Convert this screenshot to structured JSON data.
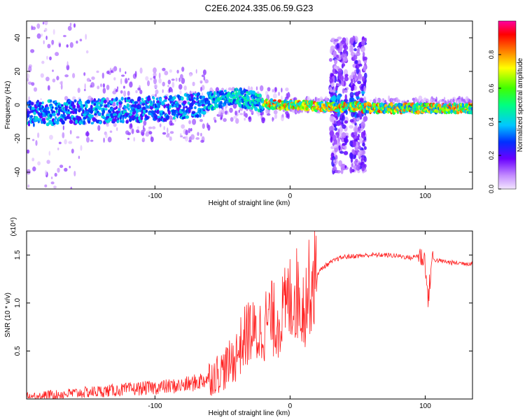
{
  "figure_title": "C2E6.2024.335.06.59.G23",
  "colors": {
    "snr_line": "#ff2020",
    "spectrum_low": "#e6d6ff",
    "spectrum_mid": "#6a00ff",
    "spectrum_high": "#ff0000"
  },
  "chart_data": [
    {
      "type": "heatmap",
      "title": "C2E6.2024.335.06.59.G23",
      "xlabel": "Height of straight line (km)",
      "ylabel": "Frequency (Hz)",
      "xlim": [
        -195,
        135
      ],
      "ylim": [
        -50,
        50
      ],
      "xticks": [
        -100,
        0,
        100
      ],
      "xtick_labels": [
        "-100",
        "0",
        "100"
      ],
      "yticks": [
        -40,
        -20,
        0,
        20,
        40
      ],
      "ytick_labels": [
        "-40",
        "-20",
        "0",
        "20",
        "40"
      ],
      "colorbar": {
        "label": "Normalized spectral amplitude",
        "range": [
          0,
          1
        ],
        "ticks": [
          0.0,
          0.2,
          0.4,
          0.6,
          0.8
        ],
        "tick_labels": [
          "0.0",
          "0.2",
          "0.4",
          "0.6",
          "0.8"
        ]
      },
      "ridge": {
        "x": [
          -195,
          -150,
          -120,
          -90,
          -70,
          -55,
          -45,
          -40,
          -35,
          -30,
          -25,
          -20,
          -10,
          0,
          10,
          20,
          30,
          40,
          50,
          60,
          80,
          100,
          120,
          135
        ],
        "frequency": [
          -5,
          -4,
          -3,
          -2,
          0,
          3,
          5,
          6,
          4,
          3,
          2,
          1,
          0,
          0,
          0,
          -1,
          -1,
          -1,
          -1,
          -2,
          -2,
          -2,
          -2,
          -2
        ]
      },
      "noise_bursts_x": [
        [
          30,
          42
        ],
        [
          45,
          56
        ]
      ]
    },
    {
      "type": "line",
      "title": "",
      "xlabel": "Height of straight line (km)",
      "ylabel": "SNR (10 * v/v)",
      "y_multiplier": "(x10⁴)",
      "xlim": [
        -195,
        135
      ],
      "ylim": [
        0,
        1.75
      ],
      "xticks": [
        -100,
        0,
        100
      ],
      "xtick_labels": [
        "-100",
        "0",
        "100"
      ],
      "yticks": [
        0.5,
        1.0,
        1.5
      ],
      "ytick_labels": [
        "0.5",
        "1.0",
        "1.5"
      ],
      "series": [
        {
          "name": "SNR",
          "x": [
            -195,
            -180,
            -160,
            -140,
            -120,
            -100,
            -80,
            -70,
            -60,
            -50,
            -45,
            -40,
            -35,
            -30,
            -25,
            -20,
            -15,
            -10,
            -5,
            0,
            5,
            10,
            15,
            20,
            25,
            30,
            35,
            40,
            50,
            60,
            70,
            80,
            90,
            95,
            100,
            102,
            105,
            110,
            120,
            135
          ],
          "values": [
            0.02,
            0.04,
            0.06,
            0.08,
            0.1,
            0.12,
            0.14,
            0.17,
            0.22,
            0.3,
            0.36,
            0.45,
            0.6,
            0.72,
            0.65,
            0.75,
            0.85,
            0.8,
            0.9,
            1.05,
            1.1,
            0.95,
            1.2,
            1.3,
            1.38,
            1.42,
            1.46,
            1.48,
            1.49,
            1.5,
            1.5,
            1.49,
            1.47,
            1.5,
            1.45,
            1.0,
            1.46,
            1.44,
            1.42,
            1.41
          ]
        }
      ]
    }
  ]
}
